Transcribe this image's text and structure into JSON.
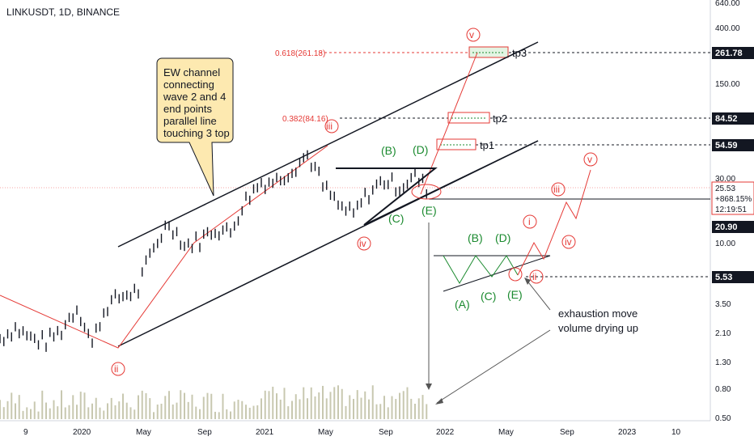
{
  "header": {
    "ticker": "LINKUSDT, 1D, BINANCE"
  },
  "chart_data": {
    "type": "line",
    "title": "LINKUSDT, 1D, BINANCE",
    "y_scale": "log",
    "y_ticks": [
      "640.00",
      "400.00",
      "150.00",
      "30.00",
      "10.00",
      "3.50",
      "2.10",
      "1.30",
      "0.80",
      "0.50"
    ],
    "x_ticks": [
      "9",
      "2020",
      "May",
      "Sep",
      "2021",
      "May",
      "Sep",
      "2022",
      "May",
      "Sep",
      "2023",
      "10"
    ],
    "price_labels": [
      {
        "value": "261.78",
        "style": "dark"
      },
      {
        "value": "84.52",
        "style": "dark"
      },
      {
        "value": "54.59",
        "style": "dark"
      },
      {
        "value": "25.53",
        "style": "red"
      },
      {
        "value": "+868.15%",
        "style": "red-plain"
      },
      {
        "value": "12:19:51",
        "style": "red-plain"
      },
      {
        "value": "20.90",
        "style": "dark"
      },
      {
        "value": "5.53",
        "style": "dark"
      }
    ],
    "price_path": [
      [
        "2019-09",
        2.0
      ],
      [
        "2019-10",
        2.4
      ],
      [
        "2019-11",
        2.0
      ],
      [
        "2019-12",
        1.9
      ],
      [
        "2020-01",
        2.3
      ],
      [
        "2020-02",
        3.4
      ],
      [
        "2020-03",
        1.8
      ],
      [
        "2020-04",
        3.6
      ],
      [
        "2020-05",
        4.2
      ],
      [
        "2020-06",
        4.6
      ],
      [
        "2020-07",
        9.5
      ],
      [
        "2020-08",
        15.0
      ],
      [
        "2020-09",
        10.0
      ],
      [
        "2020-10",
        11.0
      ],
      [
        "2020-11",
        13.5
      ],
      [
        "2020-12",
        12.5
      ],
      [
        "2021-01",
        22.0
      ],
      [
        "2021-02",
        30.0
      ],
      [
        "2021-03",
        31.0
      ],
      [
        "2021-04",
        38.0
      ],
      [
        "2021-05",
        48.0
      ],
      [
        "2021-05b",
        28.0
      ],
      [
        "2021-06",
        20.0
      ],
      [
        "2021-07",
        17.0
      ],
      [
        "2021-08",
        25.0
      ],
      [
        "2021-09",
        31.0
      ],
      [
        "2021-10",
        28.0
      ],
      [
        "2021-11",
        33.0
      ],
      [
        "2021-12",
        25.53
      ]
    ],
    "waves_red": [
      "ii",
      "iii",
      "v",
      "iv"
    ],
    "waves_green": [
      "(B)",
      "(D)",
      "(C)",
      "(E)"
    ],
    "projection_red": [
      "i",
      "iii",
      "v",
      "iv",
      "ii"
    ],
    "projection_green": [
      "(B)",
      "(D)",
      "(A)",
      "(C)",
      "(E)"
    ],
    "fib_levels": [
      {
        "label": "0.618(261.18)",
        "target": "tp3"
      },
      {
        "label": "0.382(84.16)",
        "target": "tp2"
      },
      {
        "label": "",
        "target": "tp1"
      }
    ],
    "callout": [
      "EW channel",
      "connecting",
      "wave 2 and 4",
      "end points",
      "parallel line",
      "touching 3 top"
    ],
    "annotation": [
      "exhaustion move",
      "volume drying up"
    ]
  },
  "colors": {
    "red": "#e53935",
    "green": "#1b8a2f",
    "callout_fill": "#fde9b0",
    "fib_fill": "#e3f4e3",
    "candle": "#131722",
    "volume": "#c8c8b0"
  }
}
